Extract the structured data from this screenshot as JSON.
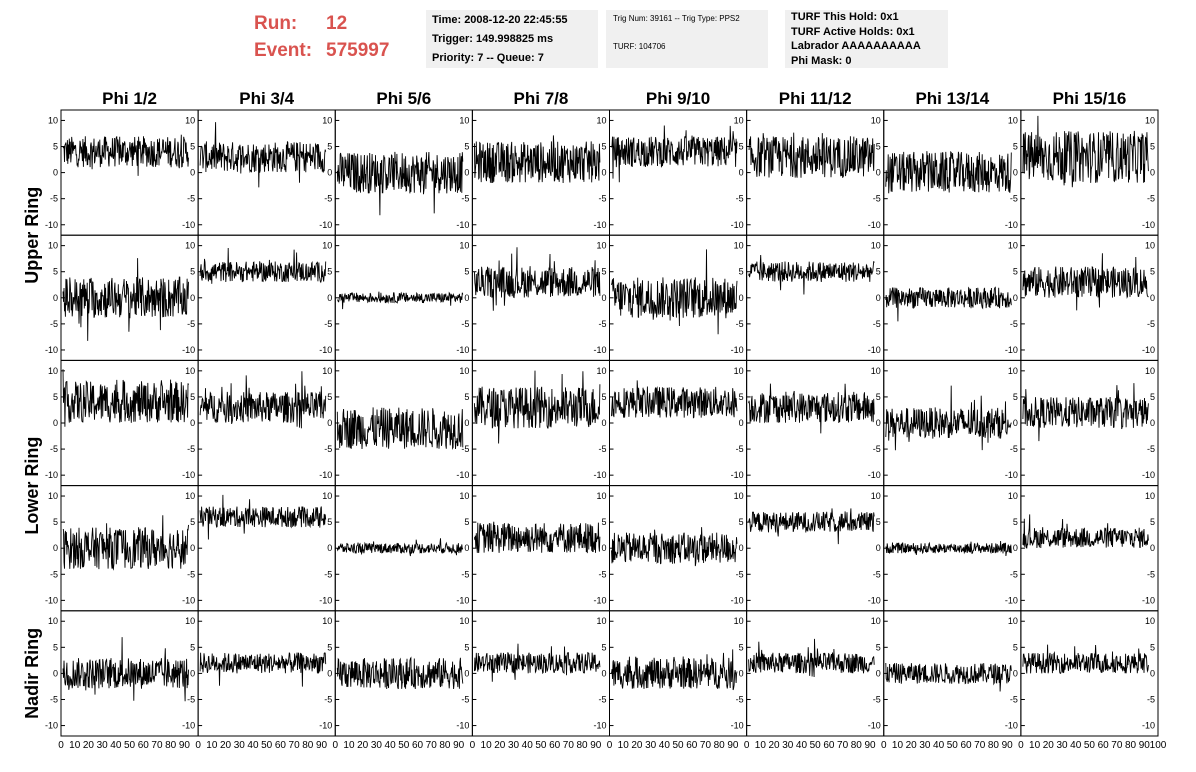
{
  "header": {
    "run_label": "Run:",
    "run_value": "12",
    "event_label": "Event:",
    "event_value": "575997"
  },
  "info_box_1": {
    "time": "Time: 2008-12-20 22:45:55",
    "trigger": "Trigger: 149.998825 ms",
    "priority": "Priority: 7 -- Queue: 7"
  },
  "info_box_2": {
    "trig": "Trig Num: 39161 -- Trig Type: PPS2",
    "turf": "TURF: 104706"
  },
  "info_box_3": {
    "hold": "TURF This Hold: 0x1",
    "active": "TURF Active Holds: 0x1",
    "labrador": "Labrador AAAAAAAAAA",
    "phimask": "Phi Mask: 0"
  },
  "chart_data": {
    "type": "line",
    "columns": [
      "Phi 1/2",
      "Phi 3/4",
      "Phi 5/6",
      "Phi 7/8",
      "Phi 9/10",
      "Phi 11/12",
      "Phi 13/14",
      "Phi 15/16"
    ],
    "row_groups": [
      {
        "label": "Upper Ring",
        "rows": 2
      },
      {
        "label": "Lower Ring",
        "rows": 2
      },
      {
        "label": "Nadir Ring",
        "rows": 1
      }
    ],
    "xlim": [
      0,
      100
    ],
    "ylim": [
      -12,
      12
    ],
    "x_ticks": [
      "0",
      "10",
      "20",
      "30",
      "40",
      "50",
      "60",
      "70",
      "80",
      "90",
      "100"
    ],
    "y_ticks": [
      "-10",
      "-5",
      "0",
      "5",
      "10"
    ],
    "panel_baselines": [
      [
        4,
        3,
        0,
        2,
        4,
        3,
        0,
        3
      ],
      [
        0,
        5,
        0,
        3,
        0,
        5,
        0,
        3
      ],
      [
        4,
        3,
        -1,
        3,
        4,
        3,
        0,
        2
      ],
      [
        0,
        6,
        0,
        2,
        0,
        5,
        0,
        2
      ],
      [
        0,
        2,
        0,
        2,
        0,
        2,
        0,
        2
      ]
    ],
    "panel_amplitude": [
      [
        3,
        3,
        4,
        4,
        3,
        4,
        4,
        5
      ],
      [
        4,
        2,
        1,
        3,
        4,
        2,
        2,
        3
      ],
      [
        4,
        3,
        4,
        4,
        3,
        3,
        3,
        3
      ],
      [
        4,
        2,
        1,
        3,
        3,
        2,
        1,
        2
      ],
      [
        3,
        2,
        3,
        2,
        3,
        2,
        2,
        2
      ]
    ]
  }
}
